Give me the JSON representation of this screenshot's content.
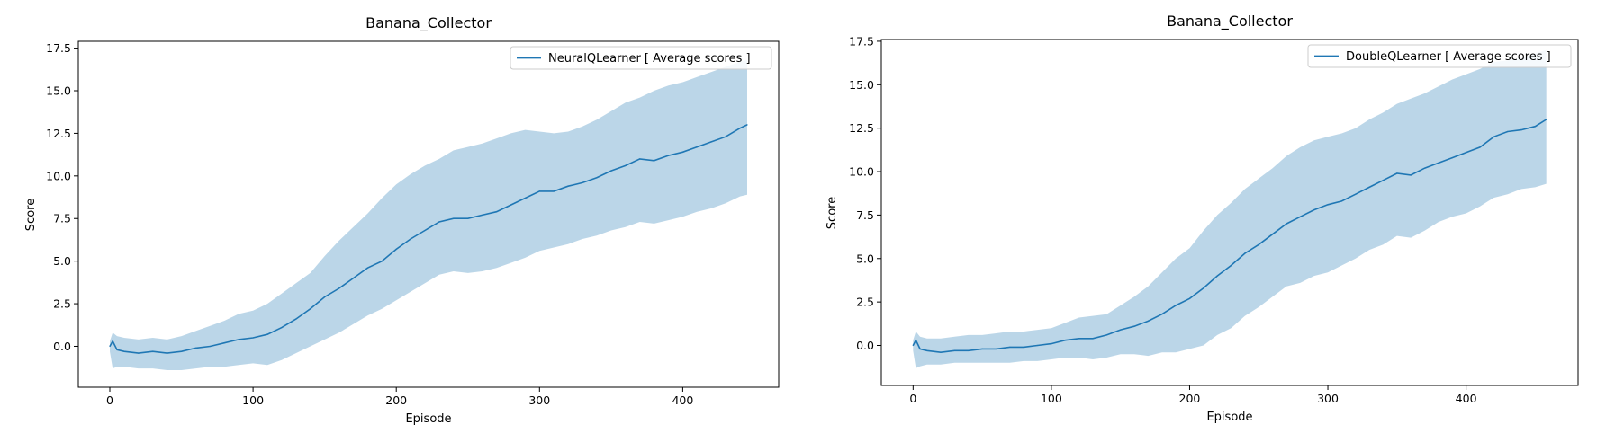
{
  "colors": {
    "line": "#1f77b4",
    "band": "#1f77b4",
    "band_opacity": 0.3,
    "axes": "#000000"
  },
  "chart_data": [
    {
      "type": "line",
      "title": "Banana_Collector",
      "xlabel": "Episode",
      "ylabel": "Score",
      "xlim": [
        -22,
        467
      ],
      "ylim": [
        -2.4,
        17.9
      ],
      "xticks": [
        0,
        100,
        200,
        300,
        400
      ],
      "yticks": [
        0.0,
        2.5,
        5.0,
        7.5,
        10.0,
        12.5,
        15.0,
        17.5
      ],
      "legend": "top-right",
      "grid": false,
      "series": [
        {
          "name": "NeuralQLearner [ Average scores ]",
          "band": "shaded range",
          "x": [
            0,
            2,
            5,
            10,
            20,
            30,
            40,
            50,
            60,
            70,
            80,
            90,
            100,
            110,
            120,
            130,
            140,
            150,
            160,
            170,
            180,
            190,
            200,
            210,
            220,
            230,
            240,
            250,
            260,
            270,
            280,
            290,
            300,
            310,
            320,
            330,
            340,
            350,
            360,
            370,
            380,
            390,
            400,
            410,
            420,
            430,
            440,
            445
          ],
          "mean": [
            0.0,
            0.3,
            -0.2,
            -0.3,
            -0.4,
            -0.3,
            -0.4,
            -0.3,
            -0.1,
            0.0,
            0.2,
            0.4,
            0.5,
            0.7,
            1.1,
            1.6,
            2.2,
            2.9,
            3.4,
            4.0,
            4.6,
            5.0,
            5.7,
            6.3,
            6.8,
            7.3,
            7.5,
            7.5,
            7.7,
            7.9,
            8.3,
            8.7,
            9.1,
            9.1,
            9.4,
            9.6,
            9.9,
            10.3,
            10.6,
            11.0,
            10.9,
            11.2,
            11.4,
            11.7,
            12.0,
            12.3,
            12.8,
            13.0
          ],
          "upper": [
            0.3,
            0.8,
            0.6,
            0.5,
            0.4,
            0.5,
            0.4,
            0.6,
            0.9,
            1.2,
            1.5,
            1.9,
            2.1,
            2.5,
            3.1,
            3.7,
            4.3,
            5.3,
            6.2,
            7.0,
            7.8,
            8.7,
            9.5,
            10.1,
            10.6,
            11.0,
            11.5,
            11.7,
            11.9,
            12.2,
            12.5,
            12.7,
            12.6,
            12.5,
            12.6,
            12.9,
            13.3,
            13.8,
            14.3,
            14.6,
            15.0,
            15.3,
            15.5,
            15.8,
            16.1,
            16.4,
            16.7,
            16.8
          ],
          "lower": [
            -0.3,
            -1.3,
            -1.2,
            -1.2,
            -1.3,
            -1.3,
            -1.4,
            -1.4,
            -1.3,
            -1.2,
            -1.2,
            -1.1,
            -1.0,
            -1.1,
            -0.8,
            -0.4,
            0.0,
            0.4,
            0.8,
            1.3,
            1.8,
            2.2,
            2.7,
            3.2,
            3.7,
            4.2,
            4.4,
            4.3,
            4.4,
            4.6,
            4.9,
            5.2,
            5.6,
            5.8,
            6.0,
            6.3,
            6.5,
            6.8,
            7.0,
            7.3,
            7.2,
            7.4,
            7.6,
            7.9,
            8.1,
            8.4,
            8.8,
            8.9
          ]
        }
      ]
    },
    {
      "type": "line",
      "title": "Banana_Collector",
      "xlabel": "Episode",
      "ylabel": "Score",
      "xlim": [
        -23,
        481
      ],
      "ylim": [
        -2.3,
        17.6
      ],
      "xticks": [
        0,
        100,
        200,
        300,
        400
      ],
      "yticks": [
        0.0,
        2.5,
        5.0,
        7.5,
        10.0,
        12.5,
        15.0,
        17.5
      ],
      "legend": "top-right",
      "grid": false,
      "series": [
        {
          "name": "DoubleQLearner [ Average scores ]",
          "band": "shaded range",
          "x": [
            0,
            2,
            5,
            10,
            20,
            30,
            40,
            50,
            60,
            70,
            80,
            90,
            100,
            110,
            120,
            130,
            140,
            150,
            160,
            170,
            180,
            190,
            200,
            210,
            220,
            230,
            240,
            250,
            260,
            270,
            280,
            290,
            300,
            310,
            320,
            330,
            340,
            350,
            360,
            370,
            380,
            390,
            400,
            410,
            420,
            430,
            440,
            450,
            458
          ],
          "mean": [
            0.0,
            0.3,
            -0.2,
            -0.3,
            -0.4,
            -0.3,
            -0.3,
            -0.2,
            -0.2,
            -0.1,
            -0.1,
            0.0,
            0.1,
            0.3,
            0.4,
            0.4,
            0.6,
            0.9,
            1.1,
            1.4,
            1.8,
            2.3,
            2.7,
            3.3,
            4.0,
            4.6,
            5.3,
            5.8,
            6.4,
            7.0,
            7.4,
            7.8,
            8.1,
            8.3,
            8.7,
            9.1,
            9.5,
            9.9,
            9.8,
            10.2,
            10.5,
            10.8,
            11.1,
            11.4,
            12.0,
            12.3,
            12.4,
            12.6,
            13.0
          ],
          "upper": [
            0.3,
            0.8,
            0.5,
            0.4,
            0.4,
            0.5,
            0.6,
            0.6,
            0.7,
            0.8,
            0.8,
            0.9,
            1.0,
            1.3,
            1.6,
            1.7,
            1.8,
            2.3,
            2.8,
            3.4,
            4.2,
            5.0,
            5.6,
            6.6,
            7.5,
            8.2,
            9.0,
            9.6,
            10.2,
            10.9,
            11.4,
            11.8,
            12.0,
            12.2,
            12.5,
            13.0,
            13.4,
            13.9,
            14.2,
            14.5,
            14.9,
            15.3,
            15.6,
            15.9,
            16.3,
            16.4,
            16.5,
            16.8,
            17.0
          ],
          "lower": [
            -0.3,
            -1.3,
            -1.2,
            -1.1,
            -1.1,
            -1.0,
            -1.0,
            -1.0,
            -1.0,
            -1.0,
            -0.9,
            -0.9,
            -0.8,
            -0.7,
            -0.7,
            -0.8,
            -0.7,
            -0.5,
            -0.5,
            -0.6,
            -0.4,
            -0.4,
            -0.2,
            0.0,
            0.6,
            1.0,
            1.7,
            2.2,
            2.8,
            3.4,
            3.6,
            4.0,
            4.2,
            4.6,
            5.0,
            5.5,
            5.8,
            6.3,
            6.2,
            6.6,
            7.1,
            7.4,
            7.6,
            8.0,
            8.5,
            8.7,
            9.0,
            9.1,
            9.3
          ]
        }
      ]
    }
  ]
}
